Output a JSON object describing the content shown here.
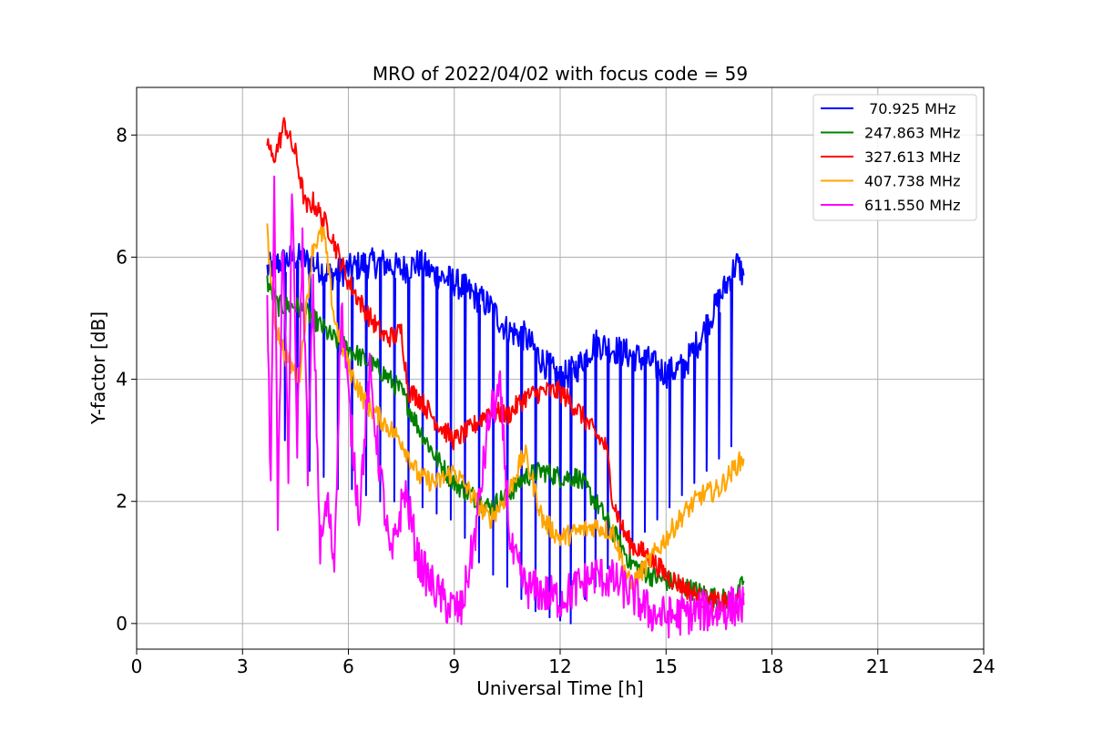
{
  "chart_data": {
    "type": "line",
    "title": "MRO of 2022/04/02 with focus code = 59",
    "xlabel": "Universal Time [h]",
    "ylabel": "Y-factor [dB]",
    "xlim": [
      0,
      24
    ],
    "ylim": [
      -0.42,
      8.78
    ],
    "xticks": [
      0,
      3,
      6,
      9,
      12,
      15,
      18,
      21,
      24
    ],
    "yticks": [
      0,
      2,
      4,
      6,
      8
    ],
    "grid": true,
    "legend_position": "top-right",
    "series": [
      {
        "name": " 70.925 MHz",
        "color": "#0000ff",
        "x": [
          3.7,
          4.0,
          4.5,
          5.0,
          5.5,
          6.0,
          6.5,
          7.0,
          7.5,
          8.0,
          8.5,
          9.0,
          9.5,
          10.0,
          10.5,
          11.0,
          11.5,
          12.0,
          12.5,
          13.0,
          13.5,
          14.0,
          14.5,
          15.0,
          15.5,
          16.0,
          16.5,
          17.0,
          17.2
        ],
        "values": [
          5.8,
          5.9,
          6.0,
          5.9,
          5.7,
          5.8,
          5.9,
          5.9,
          5.8,
          5.9,
          5.7,
          5.6,
          5.4,
          5.2,
          4.8,
          4.7,
          4.3,
          4.0,
          4.2,
          4.6,
          4.5,
          4.4,
          4.3,
          4.1,
          4.2,
          4.7,
          5.3,
          5.9,
          5.7
        ],
        "dips": [
          [
            4.2,
            3.0
          ],
          [
            4.55,
            3.3
          ],
          [
            4.9,
            2.5
          ],
          [
            5.3,
            2.4
          ],
          [
            5.7,
            2.2
          ],
          [
            6.1,
            2.2
          ],
          [
            6.5,
            2.1
          ],
          [
            6.9,
            2.0
          ],
          [
            7.3,
            2.0
          ],
          [
            7.7,
            1.9
          ],
          [
            8.1,
            1.9
          ],
          [
            8.5,
            1.8
          ],
          [
            8.9,
            1.7
          ],
          [
            9.3,
            1.4
          ],
          [
            9.7,
            1.0
          ],
          [
            10.1,
            0.8
          ],
          [
            10.5,
            0.6
          ],
          [
            10.9,
            0.4
          ],
          [
            11.3,
            0.2
          ],
          [
            11.7,
            0.1
          ],
          [
            12.0,
            0.05
          ],
          [
            12.3,
            0.0
          ],
          [
            12.7,
            0.4
          ],
          [
            13.0,
            0.6
          ],
          [
            13.35,
            0.9
          ],
          [
            13.7,
            1.1
          ],
          [
            14.05,
            1.3
          ],
          [
            14.4,
            1.5
          ],
          [
            14.75,
            1.7
          ],
          [
            15.1,
            1.9
          ],
          [
            15.45,
            2.1
          ],
          [
            15.8,
            2.3
          ],
          [
            16.15,
            2.5
          ],
          [
            16.5,
            2.7
          ],
          [
            16.85,
            2.9
          ]
        ]
      },
      {
        "name": "247.863 MHz",
        "color": "#008000",
        "x": [
          3.7,
          4.0,
          4.5,
          5.0,
          5.5,
          6.0,
          6.5,
          7.0,
          7.5,
          8.0,
          8.5,
          9.0,
          9.5,
          10.0,
          10.5,
          11.0,
          11.5,
          12.0,
          12.5,
          13.0,
          13.5,
          14.0,
          14.5,
          15.0,
          15.5,
          16.0,
          16.5,
          17.0,
          17.2
        ],
        "values": [
          5.6,
          5.2,
          5.2,
          5.0,
          4.7,
          4.5,
          4.3,
          4.1,
          3.8,
          3.2,
          2.7,
          2.3,
          2.1,
          1.9,
          2.1,
          2.4,
          2.5,
          2.4,
          2.4,
          2.0,
          1.5,
          1.0,
          0.8,
          0.7,
          0.6,
          0.5,
          0.4,
          0.4,
          0.7
        ]
      },
      {
        "name": "327.613 MHz",
        "color": "#ff0000",
        "x": [
          3.7,
          3.85,
          4.0,
          4.2,
          4.35,
          4.5,
          4.8,
          5.0,
          5.3,
          5.5,
          5.8,
          6.0,
          6.5,
          7.0,
          7.3,
          7.5,
          7.7,
          8.0,
          8.5,
          9.0,
          9.5,
          10.0,
          10.5,
          11.0,
          11.5,
          12.0,
          12.5,
          13.0,
          13.3,
          13.5,
          13.8,
          14.0,
          14.5,
          15.0,
          15.5,
          16.0,
          16.5,
          17.0,
          17.2
        ],
        "values": [
          7.9,
          7.6,
          7.8,
          8.2,
          7.9,
          7.7,
          6.8,
          6.9,
          6.6,
          6.4,
          5.9,
          5.6,
          5.1,
          4.7,
          4.7,
          4.8,
          3.8,
          3.7,
          3.3,
          3.0,
          3.2,
          3.5,
          3.4,
          3.7,
          3.8,
          3.8,
          3.5,
          3.1,
          2.9,
          2.0,
          1.5,
          1.3,
          1.1,
          0.8,
          0.6,
          0.4,
          0.35,
          0.3,
          0.5
        ]
      },
      {
        "name": "407.738 MHz",
        "color": "#ffa500",
        "x": [
          3.7,
          3.9,
          4.2,
          4.6,
          5.0,
          5.3,
          5.6,
          6.0,
          6.5,
          7.0,
          7.5,
          8.0,
          8.5,
          9.0,
          9.5,
          10.0,
          10.5,
          11.0,
          11.5,
          12.0,
          12.5,
          13.0,
          13.5,
          14.0,
          14.5,
          15.0,
          15.5,
          16.0,
          16.5,
          17.0,
          17.2
        ],
        "values": [
          6.4,
          5.0,
          4.4,
          4.0,
          6.2,
          6.4,
          5.0,
          4.2,
          3.6,
          3.3,
          3.0,
          2.4,
          2.3,
          2.5,
          2.1,
          1.7,
          2.1,
          2.8,
          1.7,
          1.4,
          1.5,
          1.6,
          1.5,
          0.6,
          1.0,
          1.4,
          1.8,
          2.1,
          2.2,
          2.6,
          2.7
        ]
      },
      {
        "name": "611.550 MHz",
        "color": "#ff00ff",
        "x": [
          3.7,
          3.8,
          3.9,
          4.0,
          4.15,
          4.3,
          4.4,
          4.55,
          4.7,
          4.85,
          5.0,
          5.2,
          5.4,
          5.6,
          5.8,
          6.0,
          6.3,
          6.6,
          6.9,
          7.2,
          7.6,
          8.0,
          8.4,
          8.8,
          9.2,
          9.6,
          10.0,
          10.3,
          10.6,
          11.0,
          11.5,
          12.0,
          12.5,
          13.0,
          13.5,
          14.0,
          14.5,
          15.0,
          15.5,
          16.0,
          16.5,
          17.0,
          17.2
        ],
        "values": [
          5.5,
          2.1,
          7.5,
          1.8,
          6.4,
          2.3,
          7.3,
          3.0,
          6.2,
          2.6,
          5.4,
          1.2,
          2.0,
          1.0,
          5.2,
          3.7,
          1.8,
          4.1,
          2.5,
          1.0,
          2.2,
          1.0,
          0.6,
          0.3,
          0.2,
          1.5,
          3.4,
          3.8,
          1.2,
          0.6,
          0.5,
          0.4,
          0.6,
          0.8,
          0.7,
          0.5,
          0.2,
          0.1,
          0.15,
          0.2,
          0.2,
          0.3,
          0.3
        ]
      }
    ]
  }
}
